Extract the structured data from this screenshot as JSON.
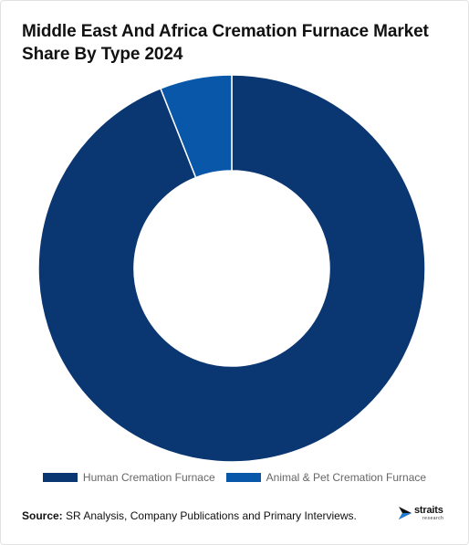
{
  "chart_data": {
    "type": "pie",
    "title": "Middle East And Africa Cremation Furnace Market Share By Type 2024",
    "donut": true,
    "categories": [
      "Human Cremation Furnace",
      "Animal & Pet Cremation Furnace"
    ],
    "values": [
      94,
      6
    ],
    "colors": [
      "#0a3672",
      "#0957a8"
    ],
    "legend_position": "bottom"
  },
  "source": {
    "label": "Source:",
    "text": "SR Analysis, Company Publications and Primary Interviews."
  },
  "logo": {
    "name": "straits",
    "sub": "research"
  },
  "legend": {
    "items": [
      "Human Cremation Furnace",
      "Animal & Pet Cremation Furnace"
    ]
  }
}
